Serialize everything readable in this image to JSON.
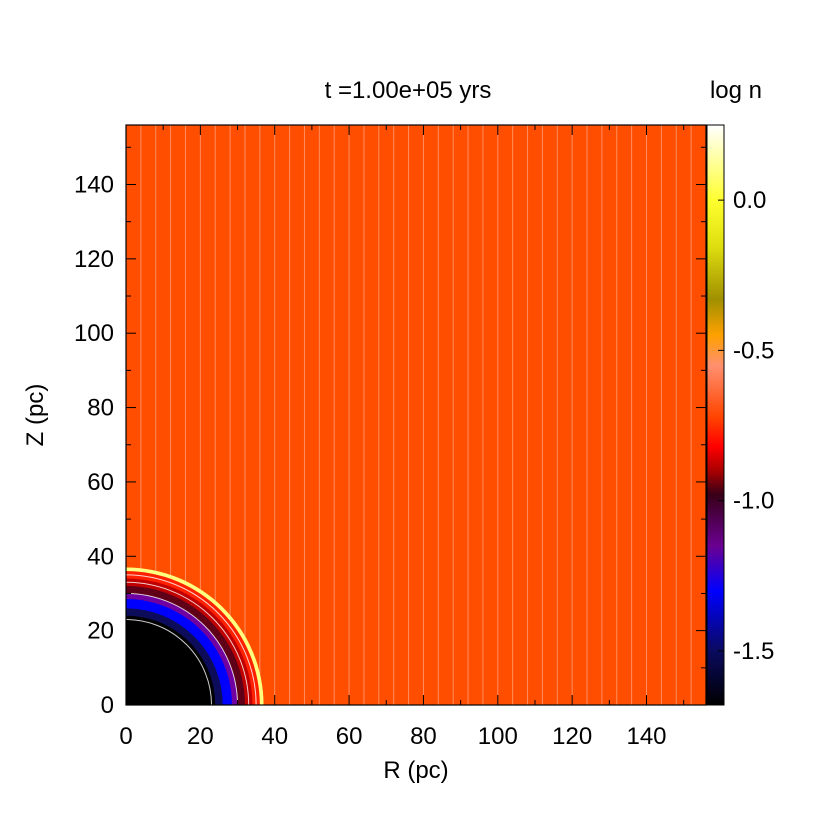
{
  "chart_data": {
    "type": "heatmap",
    "title": "t =1.00e+05 yrs",
    "xlabel": "R (pc)",
    "ylabel": "Z (pc)",
    "xlim": [
      0,
      156
    ],
    "ylim": [
      0,
      156
    ],
    "xticks": [
      0,
      20,
      40,
      60,
      80,
      100,
      120,
      140
    ],
    "yticks": [
      0,
      20,
      40,
      60,
      80,
      100,
      120,
      140
    ],
    "colorbar": {
      "label": "log n",
      "range": [
        -1.68,
        0.25
      ],
      "ticks": [
        0.0,
        -0.5,
        -1.0,
        -1.5
      ],
      "tick_labels": [
        "0.0",
        "-0.5",
        "-1.0",
        "-1.5"
      ],
      "colormap": [
        {
          "value": -1.68,
          "color": "#000000"
        },
        {
          "value": -1.5,
          "color": "#0a0a60"
        },
        {
          "value": -1.3,
          "color": "#0000ff"
        },
        {
          "value": -1.15,
          "color": "#6a0090"
        },
        {
          "value": -0.98,
          "color": "#380018"
        },
        {
          "value": -0.9,
          "color": "#aa0000"
        },
        {
          "value": -0.82,
          "color": "#ff0000"
        },
        {
          "value": -0.72,
          "color": "#ff4500"
        },
        {
          "value": -0.55,
          "color": "#ff9070"
        },
        {
          "value": -0.45,
          "color": "#ffa000"
        },
        {
          "value": -0.33,
          "color": "#a09000"
        },
        {
          "value": -0.15,
          "color": "#e0e010"
        },
        {
          "value": 0.0,
          "color": "#ffff30"
        },
        {
          "value": 0.25,
          "color": "#ffffff"
        }
      ]
    },
    "background": {
      "log_n": -0.72,
      "color": "#ff4e00"
    },
    "bubble": {
      "center": [
        0,
        0
      ],
      "layers": [
        {
          "radius": 37,
          "log_n": 0.05,
          "color": "#ffff80"
        },
        {
          "radius": 36,
          "log_n": -0.78,
          "color": "#ff2000"
        },
        {
          "radius": 34,
          "log_n": -0.9,
          "color": "#c00000"
        },
        {
          "radius": 32,
          "log_n": -1.0,
          "color": "#600018"
        },
        {
          "radius": 30,
          "log_n": -1.2,
          "color": "#7000a0"
        },
        {
          "radius": 28.5,
          "log_n": -1.35,
          "color": "#0000ff"
        },
        {
          "radius": 26,
          "log_n": -1.5,
          "color": "#0c0c5a"
        },
        {
          "radius": 24,
          "log_n": -1.68,
          "color": "#000000"
        }
      ]
    },
    "vertical_lines": {
      "x_start": 4,
      "x_end": 156,
      "spacing": 4,
      "color": "#ff9a70"
    },
    "contours": [
      {
        "radius": 23
      },
      {
        "radius": 30
      },
      {
        "radius": 33
      },
      {
        "radius": 35
      }
    ]
  },
  "colors": {
    "background": "#ffffff",
    "text": "#000000",
    "contour": "#ffffff"
  }
}
